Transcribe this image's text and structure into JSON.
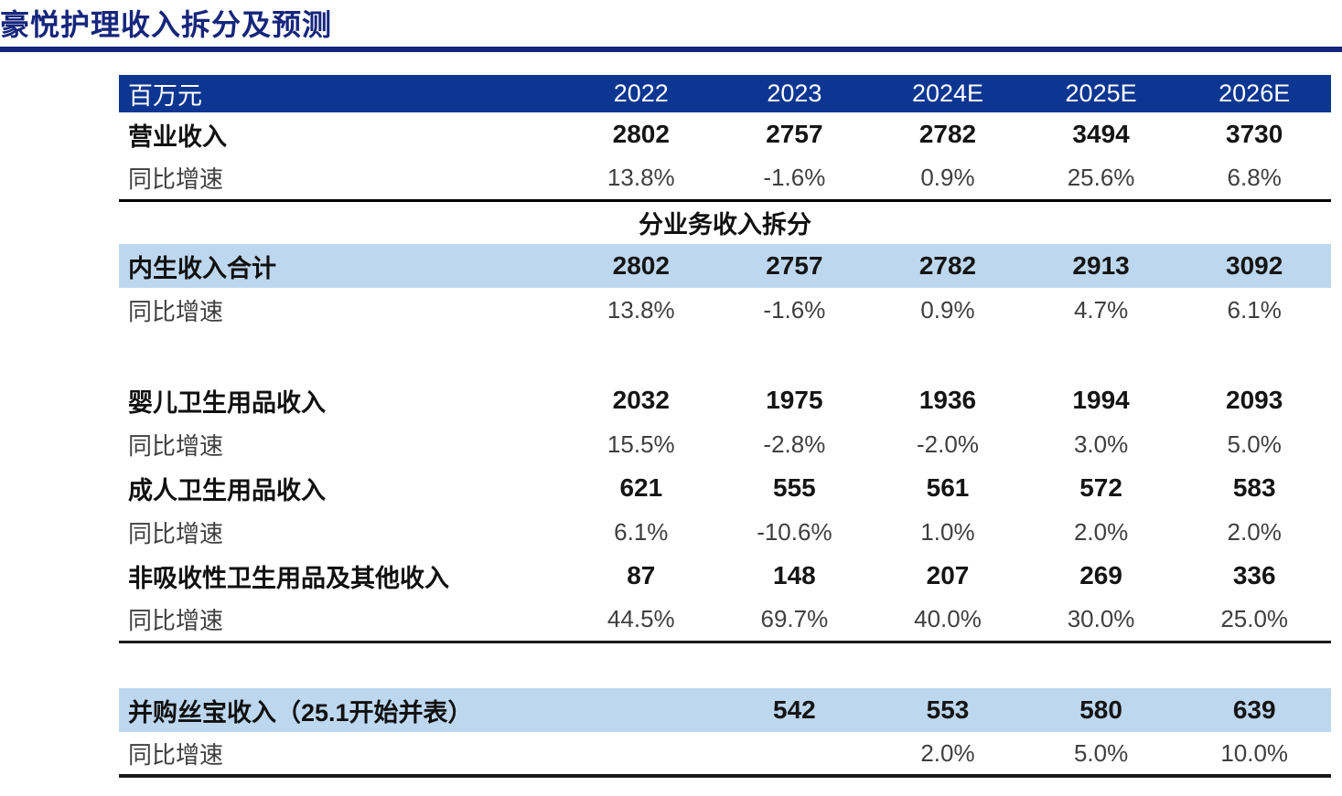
{
  "title": "豪悦护理收入拆分及预测",
  "colors": {
    "title_blue": "#16267c",
    "header_bg": "#0d3692",
    "highlight_bg": "#bdd7ee",
    "body_text": "#1a1a1a",
    "growth_text": "#3f3f3f"
  },
  "table": {
    "unit_header": "百万元",
    "years": [
      "2022",
      "2023",
      "2024E",
      "2025E",
      "2026E"
    ],
    "section_header": "分业务收入拆分",
    "rows": [
      {
        "label": "营业收入",
        "values": [
          "2802",
          "2757",
          "2782",
          "3494",
          "3730"
        ]
      },
      {
        "label": "同比增速",
        "values": [
          "13.8%",
          "-1.6%",
          "0.9%",
          "25.6%",
          "6.8%"
        ]
      },
      {
        "label": "内生收入合计",
        "values": [
          "2802",
          "2757",
          "2782",
          "2913",
          "3092"
        ]
      },
      {
        "label": "同比增速",
        "values": [
          "13.8%",
          "-1.6%",
          "0.9%",
          "4.7%",
          "6.1%"
        ]
      },
      {
        "label": "婴儿卫生用品收入",
        "values": [
          "2032",
          "1975",
          "1936",
          "1994",
          "2093"
        ]
      },
      {
        "label": "同比增速",
        "values": [
          "15.5%",
          "-2.8%",
          "-2.0%",
          "3.0%",
          "5.0%"
        ]
      },
      {
        "label": "成人卫生用品收入",
        "values": [
          "621",
          "555",
          "561",
          "572",
          "583"
        ]
      },
      {
        "label": "同比增速",
        "values": [
          "6.1%",
          "-10.6%",
          "1.0%",
          "2.0%",
          "2.0%"
        ]
      },
      {
        "label": "非吸收性卫生用品及其他收入",
        "values": [
          "87",
          "148",
          "207",
          "269",
          "336"
        ]
      },
      {
        "label": "同比增速",
        "values": [
          "44.5%",
          "69.7%",
          "40.0%",
          "30.0%",
          "25.0%"
        ]
      },
      {
        "label": "并购丝宝收入（25.1开始并表）",
        "values": [
          "",
          "542",
          "553",
          "580",
          "639"
        ]
      },
      {
        "label": "同比增速",
        "values": [
          "",
          "",
          "2.0%",
          "5.0%",
          "10.0%"
        ]
      }
    ]
  }
}
